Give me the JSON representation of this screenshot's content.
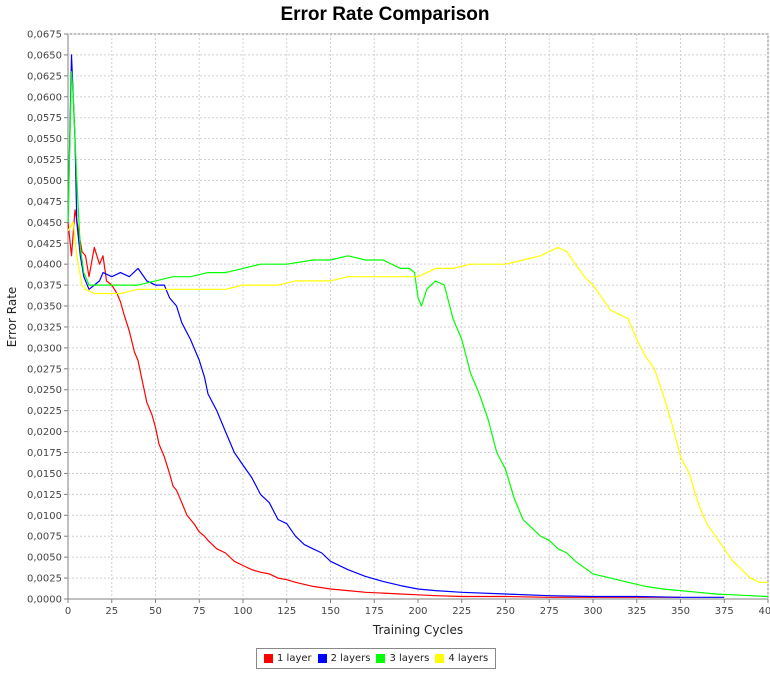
{
  "chart_data": {
    "type": "line",
    "title": "Error Rate Comparison",
    "xlabel": "Training Cycles",
    "ylabel": "Error Rate",
    "xlim": [
      0,
      400
    ],
    "ylim": [
      0,
      0.0675
    ],
    "x_ticks": [
      "0",
      "25",
      "50",
      "75",
      "100",
      "125",
      "150",
      "175",
      "200",
      "225",
      "250",
      "275",
      "300",
      "325",
      "350",
      "375",
      "400"
    ],
    "y_ticks": [
      "0,0000",
      "0,0025",
      "0,0050",
      "0,0075",
      "0,0100",
      "0,0125",
      "0,0150",
      "0,0175",
      "0,0200",
      "0,0225",
      "0,0250",
      "0,0275",
      "0,0300",
      "0,0325",
      "0,0350",
      "0,0375",
      "0,0400",
      "0,0425",
      "0,0450",
      "0,0475",
      "0,0500",
      "0,0525",
      "0,0550",
      "0,0575",
      "0,0600",
      "0,0625",
      "0,0650",
      "0,0675"
    ],
    "grid": true,
    "legend_position": "bottom",
    "series": [
      {
        "name": "1 layer",
        "color": "#ff0000",
        "x": [
          0,
          2,
          4,
          6,
          8,
          10,
          12,
          15,
          18,
          20,
          22,
          25,
          28,
          30,
          32,
          35,
          38,
          40,
          42,
          45,
          48,
          50,
          52,
          55,
          58,
          60,
          62,
          65,
          68,
          70,
          72,
          75,
          78,
          80,
          85,
          90,
          95,
          100,
          105,
          110,
          115,
          120,
          125,
          130,
          140,
          150,
          160,
          170,
          180,
          190,
          200,
          210,
          225,
          250,
          275,
          300,
          325,
          350,
          375,
          400
        ],
        "y": [
          0.045,
          0.041,
          0.0465,
          0.044,
          0.0415,
          0.041,
          0.0385,
          0.042,
          0.04,
          0.041,
          0.038,
          0.0375,
          0.0365,
          0.0355,
          0.034,
          0.032,
          0.0295,
          0.0285,
          0.0265,
          0.0235,
          0.022,
          0.0205,
          0.0185,
          0.017,
          0.015,
          0.0135,
          0.013,
          0.0115,
          0.01,
          0.0095,
          0.009,
          0.008,
          0.0075,
          0.007,
          0.006,
          0.0055,
          0.0045,
          0.004,
          0.0035,
          0.0032,
          0.003,
          0.0025,
          0.0023,
          0.002,
          0.0015,
          0.0012,
          0.001,
          0.0008,
          0.0007,
          0.0006,
          0.0005,
          0.0004,
          0.0003,
          0.0003,
          0.0002,
          0.0002,
          0.0002,
          0.0002,
          null,
          null
        ]
      },
      {
        "name": "2 layers",
        "color": "#0000ff",
        "x": [
          0,
          2,
          4,
          5,
          7,
          9,
          12,
          15,
          18,
          20,
          25,
          30,
          35,
          40,
          45,
          50,
          55,
          58,
          62,
          65,
          70,
          75,
          78,
          80,
          85,
          90,
          95,
          100,
          105,
          110,
          115,
          120,
          125,
          130,
          135,
          140,
          145,
          150,
          160,
          170,
          180,
          190,
          200,
          210,
          225,
          250,
          275,
          300,
          325,
          350,
          375
        ],
        "y": [
          0.045,
          0.065,
          0.055,
          0.045,
          0.041,
          0.0385,
          0.037,
          0.0375,
          0.038,
          0.039,
          0.0385,
          0.039,
          0.0385,
          0.0395,
          0.038,
          0.0375,
          0.0375,
          0.036,
          0.035,
          0.033,
          0.031,
          0.0285,
          0.0265,
          0.0245,
          0.0225,
          0.02,
          0.0175,
          0.016,
          0.0145,
          0.0125,
          0.0115,
          0.0095,
          0.009,
          0.0075,
          0.0065,
          0.006,
          0.0055,
          0.0045,
          0.0035,
          0.0027,
          0.0021,
          0.0016,
          0.0012,
          0.001,
          0.0008,
          0.0006,
          0.0004,
          0.0003,
          0.0003,
          0.0002,
          0.0002
        ]
      },
      {
        "name": "3 layers",
        "color": "#00ff00",
        "x": [
          0,
          2,
          3,
          5,
          7,
          9,
          12,
          15,
          20,
          25,
          30,
          40,
          50,
          60,
          70,
          80,
          90,
          100,
          110,
          125,
          140,
          150,
          160,
          170,
          180,
          190,
          195,
          198,
          200,
          202,
          205,
          210,
          215,
          220,
          225,
          230,
          235,
          240,
          245,
          250,
          255,
          260,
          265,
          270,
          275,
          280,
          285,
          290,
          300,
          310,
          320,
          330,
          340,
          350,
          360,
          370,
          380,
          390,
          400
        ],
        "y": [
          0.045,
          0.063,
          0.06,
          0.05,
          0.042,
          0.039,
          0.0375,
          0.0375,
          0.0375,
          0.0375,
          0.0375,
          0.0375,
          0.038,
          0.0385,
          0.0385,
          0.039,
          0.039,
          0.0395,
          0.04,
          0.04,
          0.0405,
          0.0405,
          0.041,
          0.0405,
          0.0405,
          0.0395,
          0.0395,
          0.039,
          0.036,
          0.035,
          0.037,
          0.038,
          0.0375,
          0.0335,
          0.031,
          0.027,
          0.0245,
          0.0215,
          0.0175,
          0.0155,
          0.012,
          0.0095,
          0.0085,
          0.0075,
          0.007,
          0.006,
          0.0055,
          0.0045,
          0.003,
          0.0025,
          0.002,
          0.0015,
          0.0012,
          0.001,
          0.0008,
          0.0006,
          0.0005,
          0.0004,
          0.0003
        ]
      },
      {
        "name": "4 layers",
        "color": "#ffff00",
        "x": [
          0,
          3,
          5,
          8,
          10,
          15,
          20,
          30,
          40,
          50,
          60,
          70,
          80,
          90,
          100,
          110,
          120,
          130,
          140,
          150,
          160,
          170,
          180,
          190,
          200,
          210,
          220,
          230,
          240,
          250,
          260,
          270,
          275,
          280,
          285,
          290,
          295,
          300,
          305,
          310,
          315,
          320,
          325,
          330,
          335,
          340,
          345,
          350,
          355,
          360,
          365,
          370,
          375,
          380,
          385,
          390,
          395,
          400
        ],
        "y": [
          0.044,
          0.045,
          0.041,
          0.0375,
          0.037,
          0.0365,
          0.0365,
          0.0365,
          0.037,
          0.037,
          0.037,
          0.037,
          0.037,
          0.037,
          0.0375,
          0.0375,
          0.0375,
          0.038,
          0.038,
          0.038,
          0.0385,
          0.0385,
          0.0385,
          0.0385,
          0.0385,
          0.0395,
          0.0395,
          0.04,
          0.04,
          0.04,
          0.0405,
          0.041,
          0.0415,
          0.042,
          0.0415,
          0.04,
          0.0385,
          0.0375,
          0.036,
          0.0345,
          0.034,
          0.0335,
          0.031,
          0.029,
          0.0275,
          0.0245,
          0.021,
          0.017,
          0.015,
          0.0115,
          0.009,
          0.0075,
          0.006,
          0.0045,
          0.0035,
          0.0025,
          0.002,
          0.002
        ]
      }
    ]
  }
}
